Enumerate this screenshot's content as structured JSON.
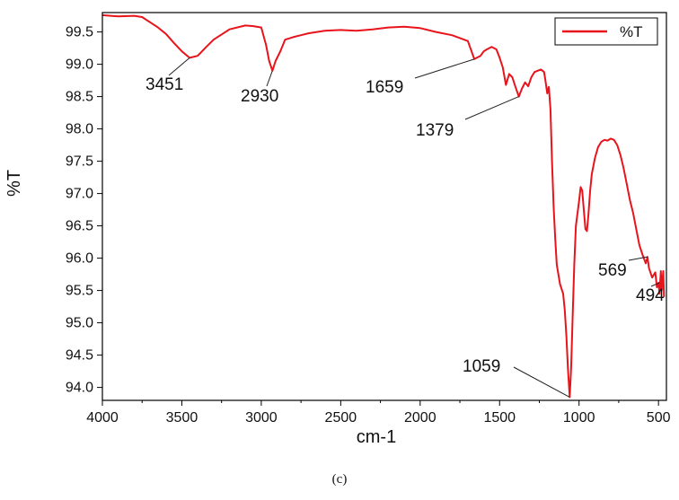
{
  "chart_data": {
    "type": "line",
    "title": "",
    "xlabel": "cm-1",
    "ylabel": "%T",
    "xlim": [
      4000,
      450
    ],
    "ylim": [
      93.8,
      99.8
    ],
    "x_reversed": true,
    "grid": false,
    "legend_position": "top-right",
    "xticks": [
      4000,
      3500,
      3000,
      2500,
      2000,
      1500,
      1000,
      500
    ],
    "yticks": [
      94.0,
      94.5,
      95.0,
      95.5,
      96.0,
      96.5,
      97.0,
      97.5,
      98.0,
      98.5,
      99.0,
      99.5
    ],
    "series": [
      {
        "name": "%T",
        "color": "#e8141c",
        "x": [
          4000,
          3900,
          3800,
          3750,
          3700,
          3650,
          3600,
          3550,
          3500,
          3451,
          3400,
          3350,
          3300,
          3200,
          3100,
          3050,
          3000,
          2970,
          2950,
          2930,
          2910,
          2880,
          2850,
          2800,
          2750,
          2700,
          2600,
          2500,
          2400,
          2300,
          2200,
          2100,
          2000,
          1900,
          1800,
          1700,
          1659,
          1620,
          1600,
          1580,
          1550,
          1520,
          1500,
          1480,
          1460,
          1440,
          1420,
          1400,
          1379,
          1360,
          1340,
          1320,
          1300,
          1280,
          1260,
          1240,
          1220,
          1210,
          1200,
          1190,
          1180,
          1170,
          1160,
          1150,
          1140,
          1130,
          1120,
          1100,
          1090,
          1080,
          1070,
          1059,
          1050,
          1040,
          1030,
          1020,
          1000,
          990,
          980,
          970,
          960,
          950,
          940,
          930,
          920,
          900,
          880,
          860,
          840,
          820,
          800,
          780,
          760,
          740,
          720,
          700,
          680,
          660,
          640,
          620,
          600,
          580,
          569,
          560,
          540,
          520,
          510,
          500,
          494,
          485,
          480,
          470,
          465
        ],
        "y": [
          99.76,
          99.74,
          99.75,
          99.73,
          99.65,
          99.57,
          99.47,
          99.33,
          99.2,
          99.1,
          99.13,
          99.26,
          99.38,
          99.54,
          99.6,
          99.59,
          99.57,
          99.3,
          99.05,
          98.9,
          99.05,
          99.2,
          99.38,
          99.42,
          99.45,
          99.48,
          99.52,
          99.53,
          99.52,
          99.54,
          99.57,
          99.58,
          99.56,
          99.5,
          99.45,
          99.36,
          99.08,
          99.13,
          99.2,
          99.23,
          99.27,
          99.23,
          99.1,
          98.95,
          98.68,
          98.85,
          98.8,
          98.65,
          98.5,
          98.62,
          98.72,
          98.66,
          98.8,
          98.88,
          98.9,
          98.92,
          98.88,
          98.72,
          98.55,
          98.65,
          98.3,
          97.5,
          96.8,
          96.3,
          95.9,
          95.75,
          95.6,
          95.45,
          95.2,
          94.8,
          94.3,
          93.85,
          94.3,
          95.1,
          95.9,
          96.5,
          96.88,
          97.1,
          97.05,
          96.75,
          96.45,
          96.42,
          96.7,
          97.05,
          97.3,
          97.55,
          97.72,
          97.8,
          97.83,
          97.82,
          97.85,
          97.83,
          97.75,
          97.6,
          97.4,
          97.15,
          96.9,
          96.7,
          96.45,
          96.2,
          96.05,
          95.92,
          96.02,
          95.85,
          95.7,
          95.78,
          95.55,
          95.62,
          95.45,
          95.8,
          95.5,
          95.8,
          95.4
        ]
      }
    ],
    "annotations": [
      {
        "label": "3451",
        "x": 3451,
        "y": 99.1
      },
      {
        "label": "2930",
        "x": 2930,
        "y": 98.9
      },
      {
        "label": "1659",
        "x": 1659,
        "y": 99.08
      },
      {
        "label": "1379",
        "x": 1379,
        "y": 98.5
      },
      {
        "label": "1059",
        "x": 1059,
        "y": 93.85
      },
      {
        "label": "569",
        "x": 569,
        "y": 96.02
      },
      {
        "label": "494",
        "x": 494,
        "y": 95.62
      }
    ]
  },
  "caption": "(c)"
}
